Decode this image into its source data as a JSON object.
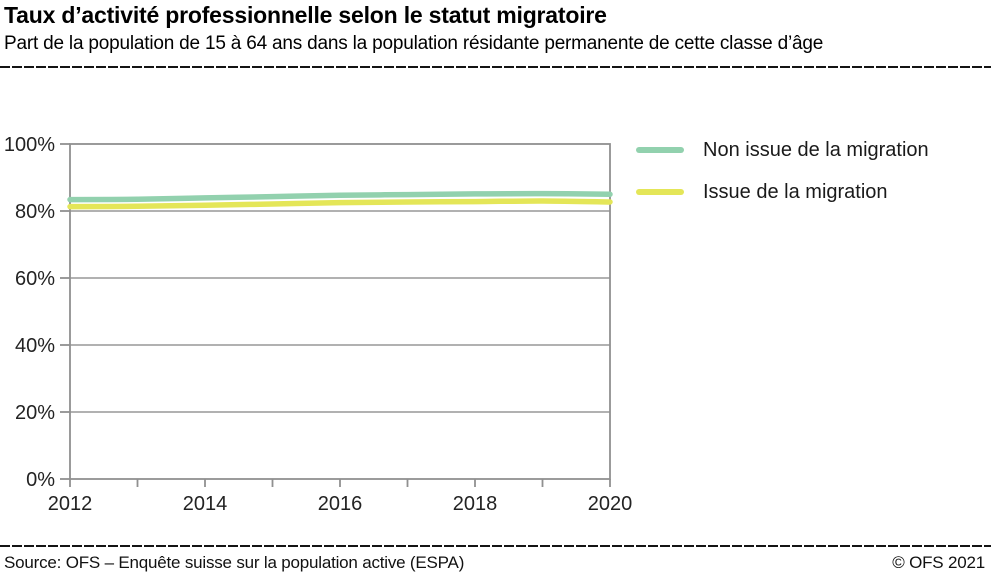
{
  "header": {
    "title": "Taux d’activité professionnelle selon le statut migratoire",
    "subtitle": "Part de la population de 15 à 64 ans dans la population résidante permanente de cette classe d’âge"
  },
  "chart_data": {
    "type": "line",
    "x": [
      2012,
      2013,
      2014,
      2015,
      2016,
      2017,
      2018,
      2019,
      2020
    ],
    "series": [
      {
        "name": "Non issue de la migration",
        "color": "#92d1ae",
        "values": [
          83.4,
          83.5,
          83.9,
          84.3,
          84.7,
          84.9,
          85.1,
          85.2,
          85.0
        ]
      },
      {
        "name": "Issue de la migration",
        "color": "#e4e658",
        "values": [
          81.3,
          81.4,
          81.7,
          82.1,
          82.5,
          82.7,
          82.8,
          83.0,
          82.7
        ]
      }
    ],
    "ylim": [
      0,
      100
    ],
    "yticks": [
      0,
      20,
      40,
      60,
      80,
      100
    ],
    "ytick_labels": [
      "0%",
      "20%",
      "40%",
      "60%",
      "80%",
      "100%"
    ],
    "xticks": [
      2012,
      2013,
      2014,
      2015,
      2016,
      2017,
      2018,
      2019,
      2020
    ],
    "xtick_labels": [
      "2012",
      "",
      "2014",
      "",
      "2016",
      "",
      "2018",
      "",
      "2020"
    ],
    "grid": "horizontal",
    "legend_position": "right",
    "title": "Taux d’activité professionnelle selon le statut migratoire",
    "xlabel": "",
    "ylabel": ""
  },
  "footer": {
    "source": "Source: OFS – Enquête suisse sur la population active (ESPA)",
    "copyright": "© OFS 2021"
  },
  "colors": {
    "grid": "#a6a6a6",
    "axis": "#909090",
    "tick_text": "#232323",
    "rule": "#141414"
  }
}
